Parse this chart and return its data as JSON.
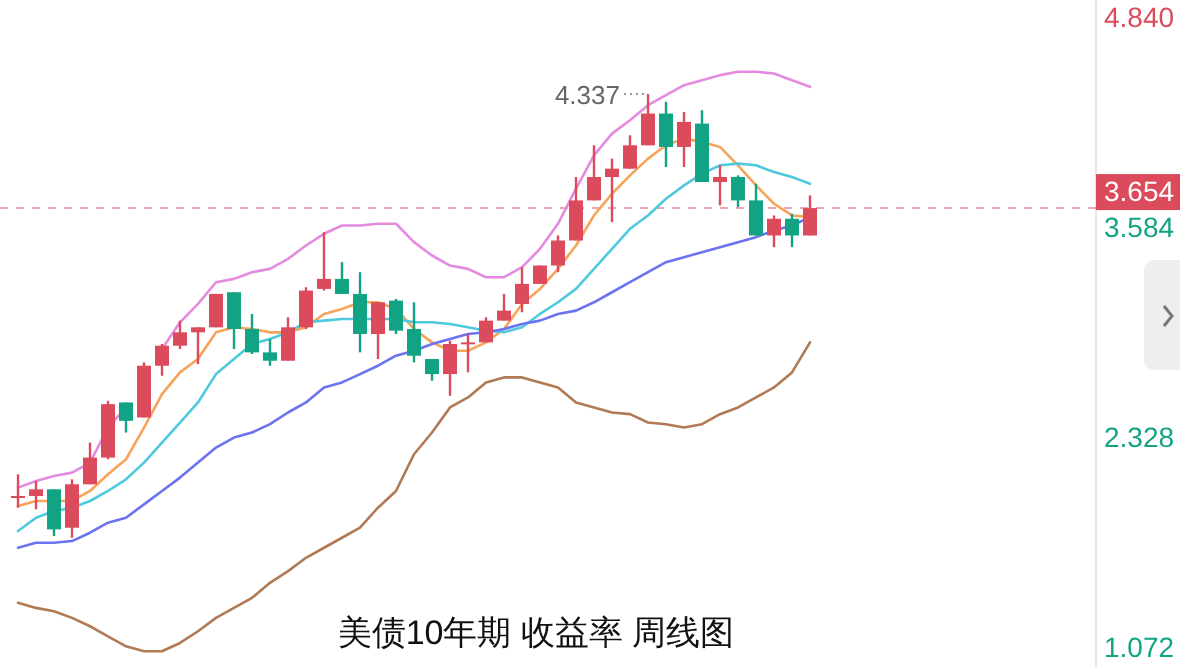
{
  "chart_data": {
    "type": "candlestick",
    "title": "美债10年期 收益率 周线图",
    "categories": [
      null,
      null,
      null,
      null,
      null,
      null,
      null,
      null,
      null,
      null,
      null,
      null,
      null,
      null,
      null,
      null,
      null,
      null,
      null,
      null,
      null,
      null,
      null,
      null,
      null,
      null,
      null,
      null,
      null,
      null,
      null,
      null,
      null,
      null,
      null,
      null,
      null,
      null,
      null,
      null,
      null,
      null,
      null,
      null,
      null
    ],
    "ohlc": [
      [
        1.92,
        2.06,
        1.86,
        1.93
      ],
      [
        1.93,
        2.02,
        1.85,
        1.97
      ],
      [
        1.97,
        1.97,
        1.69,
        1.73
      ],
      [
        1.74,
        2.03,
        1.68,
        2.0
      ],
      [
        2.0,
        2.25,
        2.0,
        2.16
      ],
      [
        2.16,
        2.5,
        2.15,
        2.48
      ],
      [
        2.49,
        2.49,
        2.31,
        2.38
      ],
      [
        2.4,
        2.73,
        2.4,
        2.71
      ],
      [
        2.71,
        2.84,
        2.65,
        2.83
      ],
      [
        2.83,
        2.98,
        2.81,
        2.91
      ],
      [
        2.91,
        2.94,
        2.72,
        2.94
      ],
      [
        2.94,
        3.14,
        2.94,
        3.14
      ],
      [
        3.15,
        3.15,
        2.81,
        2.93
      ],
      [
        2.93,
        3.02,
        2.78,
        2.79
      ],
      [
        2.79,
        2.87,
        2.71,
        2.74
      ],
      [
        2.74,
        3.0,
        2.74,
        2.94
      ],
      [
        2.94,
        3.18,
        2.93,
        3.16
      ],
      [
        3.17,
        3.51,
        3.16,
        3.23
      ],
      [
        3.23,
        3.33,
        3.14,
        3.14
      ],
      [
        3.14,
        3.27,
        2.79,
        2.9
      ],
      [
        2.9,
        3.09,
        2.75,
        3.09
      ],
      [
        3.1,
        3.11,
        2.9,
        2.92
      ],
      [
        2.93,
        3.09,
        2.73,
        2.77
      ],
      [
        2.75,
        2.75,
        2.62,
        2.66
      ],
      [
        2.66,
        2.86,
        2.53,
        2.84
      ],
      [
        2.84,
        2.9,
        2.67,
        2.85
      ],
      [
        2.85,
        3.0,
        2.85,
        2.98
      ],
      [
        2.98,
        3.14,
        2.98,
        3.04
      ],
      [
        3.08,
        3.3,
        3.03,
        3.2
      ],
      [
        3.2,
        3.31,
        3.2,
        3.31
      ],
      [
        3.31,
        3.49,
        3.27,
        3.46
      ],
      [
        3.46,
        3.84,
        3.46,
        3.7
      ],
      [
        3.7,
        4.03,
        3.7,
        3.84
      ],
      [
        3.84,
        3.95,
        3.57,
        3.89
      ],
      [
        3.89,
        4.09,
        3.89,
        4.03
      ],
      [
        4.03,
        4.337,
        4.03,
        4.22
      ],
      [
        4.22,
        4.29,
        3.9,
        4.02
      ],
      [
        4.02,
        4.23,
        3.9,
        4.17
      ],
      [
        4.16,
        4.24,
        3.81,
        3.81
      ],
      [
        3.81,
        3.91,
        3.67,
        3.84
      ],
      [
        3.84,
        3.85,
        3.66,
        3.7
      ],
      [
        3.7,
        3.8,
        3.49,
        3.49
      ],
      [
        3.49,
        3.61,
        3.42,
        3.59
      ],
      [
        3.59,
        3.62,
        3.42,
        3.49
      ],
      [
        3.49,
        3.73,
        3.49,
        3.654
      ]
    ],
    "colors": [
      "#dc4b5b",
      "#dc4b5b",
      "#11a383",
      "#dc4b5b",
      "#dc4b5b",
      "#dc4b5b",
      "#11a383",
      "#dc4b5b",
      "#dc4b5b",
      "#dc4b5b",
      "#dc4b5b",
      "#dc4b5b",
      "#11a383",
      "#11a383",
      "#11a383",
      "#dc4b5b",
      "#dc4b5b",
      "#dc4b5b",
      "#11a383",
      "#11a383",
      "#dc4b5b",
      "#11a383",
      "#11a383",
      "#11a383",
      "#dc4b5b",
      "#dc4b5b",
      "#dc4b5b",
      "#dc4b5b",
      "#dc4b5b",
      "#dc4b5b",
      "#dc4b5b",
      "#dc4b5b",
      "#dc4b5b",
      "#dc4b5b",
      "#dc4b5b",
      "#dc4b5b",
      "#11a383",
      "#dc4b5b",
      "#11a383",
      "#dc4b5b",
      "#11a383",
      "#11a383",
      "#dc4b5b",
      "#11a383",
      "#dc4b5b"
    ],
    "series": [
      {
        "type": "line",
        "color": "#e48be0",
        "values": [
          1.98,
          2.02,
          2.05,
          2.07,
          2.13,
          2.34,
          2.46,
          null,
          2.81,
          2.97,
          3.08,
          3.21,
          3.23,
          3.27,
          3.29,
          3.35,
          3.43,
          3.5,
          3.55,
          3.55,
          3.56,
          3.56,
          3.45,
          3.37,
          3.31,
          3.29,
          3.24,
          3.24,
          3.3,
          3.41,
          3.56,
          3.77,
          3.97,
          4.1,
          4.18,
          4.27,
          4.33,
          4.39,
          4.42,
          4.45,
          4.47,
          4.47,
          4.46,
          4.42,
          4.38
        ]
      },
      {
        "type": "line",
        "color": "#f7a45a",
        "values": [
          1.87,
          1.9,
          1.9,
          1.9,
          1.96,
          2.06,
          2.15,
          2.34,
          2.54,
          2.67,
          2.75,
          2.91,
          2.94,
          2.93,
          2.91,
          2.91,
          2.94,
          3.02,
          3.05,
          3.09,
          3.09,
          3.05,
          2.93,
          2.85,
          2.8,
          2.8,
          2.85,
          2.93,
          3.08,
          3.17,
          3.29,
          3.43,
          3.61,
          3.74,
          3.85,
          3.95,
          4.03,
          4.07,
          4.05,
          4.02,
          3.91,
          3.79,
          3.68,
          3.61,
          3.6
        ]
      },
      {
        "type": "line",
        "color": "#4fc9de",
        "values": [
          1.72,
          1.8,
          1.84,
          1.86,
          1.9,
          1.96,
          2.03,
          2.13,
          2.25,
          2.37,
          2.49,
          2.66,
          2.75,
          2.84,
          2.87,
          2.91,
          2.97,
          2.98,
          2.99,
          2.99,
          2.99,
          2.99,
          2.97,
          2.97,
          2.96,
          2.94,
          2.92,
          2.91,
          2.94,
          3.02,
          3.09,
          3.17,
          3.29,
          3.41,
          3.53,
          3.61,
          3.71,
          3.79,
          3.86,
          3.91,
          3.92,
          3.91,
          3.87,
          3.84,
          3.8
        ]
      },
      {
        "type": "line",
        "color": "#6d72ef",
        "values": [
          1.62,
          1.65,
          1.65,
          1.66,
          1.71,
          1.77,
          1.8,
          1.88,
          1.96,
          2.04,
          2.13,
          2.22,
          2.28,
          2.31,
          2.36,
          2.43,
          2.49,
          2.58,
          2.61,
          2.66,
          2.71,
          2.77,
          2.8,
          2.84,
          2.87,
          2.9,
          2.91,
          2.93,
          2.96,
          2.98,
          3.02,
          3.04,
          3.09,
          3.15,
          3.21,
          3.27,
          3.33,
          3.36,
          3.39,
          3.42,
          3.45,
          3.48,
          3.52,
          3.55,
          3.6
        ]
      },
      {
        "type": "line",
        "color": "#b07a55",
        "values": [
          1.29,
          1.26,
          1.24,
          1.2,
          1.15,
          1.09,
          1.03,
          1.0,
          1.0,
          1.05,
          1.12,
          1.2,
          1.26,
          1.32,
          1.41,
          1.48,
          1.56,
          1.62,
          1.68,
          1.74,
          1.86,
          1.96,
          2.18,
          2.31,
          2.46,
          2.52,
          2.61,
          2.64,
          2.64,
          2.61,
          2.58,
          2.49,
          2.46,
          2.43,
          2.42,
          2.37,
          2.36,
          2.34,
          2.36,
          2.42,
          2.46,
          2.52,
          2.58,
          2.67,
          2.85
        ]
      }
    ],
    "ylim": [
      0.9,
      4.9
    ],
    "yticks": [
      {
        "value": 4.84,
        "label": "4.840"
      },
      {
        "value": 3.584,
        "label": "3.584"
      },
      {
        "value": 2.328,
        "label": "2.328"
      },
      {
        "value": 1.072,
        "label": "1.072"
      }
    ],
    "ref_lines": [
      {
        "axis": "y",
        "value": 3.654,
        "label": "3.654",
        "color": "#f0a3b4",
        "line_style": "dashed"
      }
    ],
    "annotations": [
      "4.337"
    ],
    "grid": false
  }
}
